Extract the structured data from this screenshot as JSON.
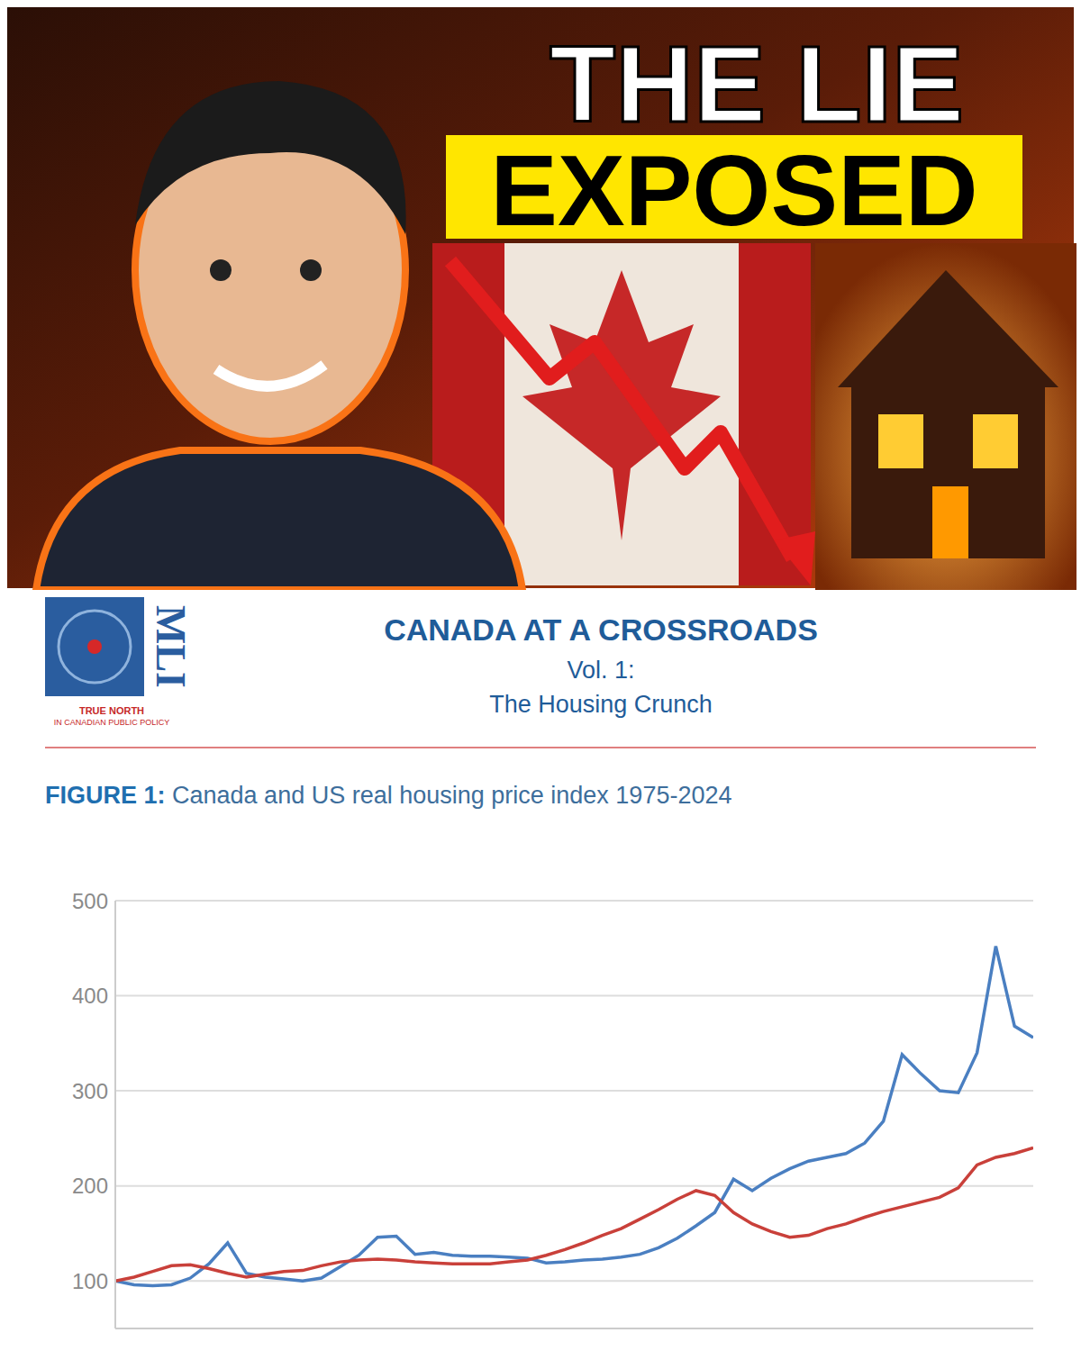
{
  "thumbnail": {
    "headline": "THE LIE",
    "highlight": "EXPOSED"
  },
  "header": {
    "logo": "MLI",
    "logo_tagline": [
      "TRUE NORTH",
      "IN CANADIAN PUBLIC POLICY"
    ],
    "title": "CANADA AT A CROSSROADS",
    "subtitle": [
      "Vol. 1:",
      "The Housing Crunch"
    ]
  },
  "chart_data": {
    "type": "line",
    "figure_label": "FIGURE 1:",
    "title": "Canada and US real housing price index 1975-2024",
    "x": [
      1975,
      1976,
      1977,
      1978,
      1979,
      1980,
      1981,
      1982,
      1983,
      1984,
      1985,
      1986,
      1987,
      1988,
      1989,
      1990,
      1991,
      1992,
      1993,
      1994,
      1995,
      1996,
      1997,
      1998,
      1999,
      2000,
      2001,
      2002,
      2003,
      2004,
      2005,
      2006,
      2007,
      2008,
      2009,
      2010,
      2011,
      2012,
      2013,
      2014,
      2015,
      2016,
      2017,
      2018,
      2019,
      2020,
      2021,
      2022,
      2023,
      2024
    ],
    "xlim": [
      1975,
      2024
    ],
    "ylim": [
      50,
      500
    ],
    "yticks": [
      100,
      200,
      300,
      400,
      500
    ],
    "grid": true,
    "tick_labels": "y",
    "series": [
      {
        "color": "#4a7fc1",
        "values": [
          100,
          96,
          95,
          96,
          103,
          118,
          140,
          108,
          104,
          102,
          100,
          103,
          115,
          127,
          146,
          147,
          128,
          130,
          127,
          126,
          126,
          125,
          124,
          119,
          120,
          122,
          123,
          125,
          128,
          135,
          145,
          158,
          172,
          207,
          195,
          208,
          218,
          226,
          230,
          234,
          245,
          268,
          338,
          318,
          300,
          298,
          340,
          452,
          368,
          356
        ]
      },
      {
        "color": "#c9403a",
        "values": [
          100,
          104,
          110,
          116,
          117,
          113,
          108,
          104,
          107,
          110,
          111,
          116,
          120,
          122,
          123,
          122,
          120,
          119,
          118,
          118,
          118,
          120,
          122,
          127,
          133,
          140,
          148,
          155,
          165,
          175,
          186,
          195,
          190,
          172,
          160,
          152,
          146,
          148,
          155,
          160,
          167,
          173,
          178,
          183,
          188,
          198,
          222,
          230,
          234,
          240
        ]
      }
    ]
  }
}
